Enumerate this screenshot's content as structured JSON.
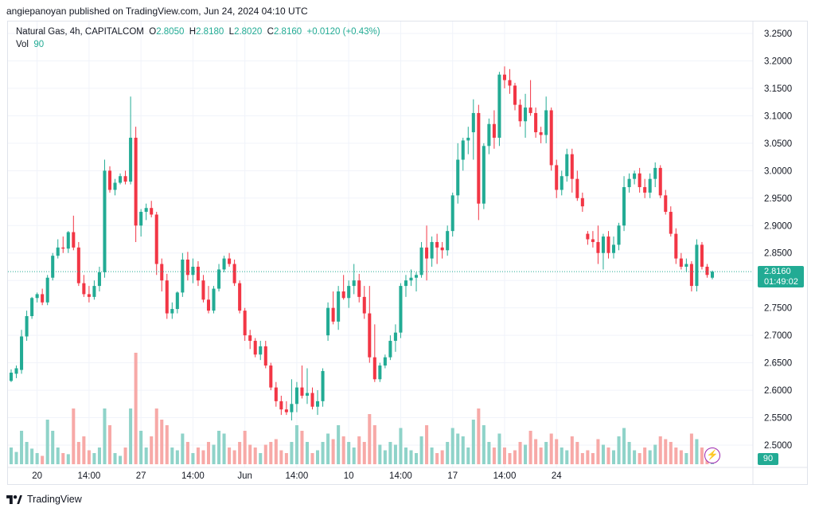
{
  "caption": "angiepanoyan published on TradingView.com, Jun 24, 2024 04:10 UTC",
  "legend": {
    "symbol": "Natural Gas, 4h, CAPITALCOM",
    "o_label": "O",
    "o_value": "2.8050",
    "h_label": "H",
    "h_value": "2.8180",
    "l_label": "L",
    "l_value": "2.8020",
    "c_label": "C",
    "c_value": "2.8160",
    "change": "+0.0120 (+0.43%)",
    "vol_label": "Vol",
    "vol_value": "90"
  },
  "price_tag": {
    "price": "2.8160",
    "countdown": "01:49:02"
  },
  "vol_tag": "90",
  "footer": {
    "brand": "TradingView"
  },
  "colors": {
    "up": "#22ab94",
    "down": "#f23645",
    "vol_up": "#8fd3c9",
    "vol_down": "#f7a9a7"
  },
  "chart_data": {
    "type": "candlestick",
    "price_axis": [
      "3.2500",
      "3.2000",
      "3.1500",
      "3.1000",
      "3.0500",
      "3.0000",
      "2.9500",
      "2.9000",
      "2.8500",
      "2.8000",
      "2.7500",
      "2.7000",
      "2.6500",
      "2.6000",
      "2.5500",
      "2.5000"
    ],
    "x_axis": [
      {
        "label": "20",
        "index": 5
      },
      {
        "label": "14:00",
        "index": 15
      },
      {
        "label": "27",
        "index": 25
      },
      {
        "label": "14:00",
        "index": 35
      },
      {
        "label": "Jun",
        "index": 45
      },
      {
        "label": "14:00",
        "index": 55
      },
      {
        "label": "10",
        "index": 65
      },
      {
        "label": "14:00",
        "index": 75
      },
      {
        "label": "17",
        "index": 85
      },
      {
        "label": "14:00",
        "index": 95
      },
      {
        "label": "24",
        "index": 105
      }
    ],
    "last_price": 2.816,
    "candles": [
      {
        "o": 2.617,
        "h": 2.638,
        "l": 2.615,
        "c": 2.632,
        "v": 0.3
      },
      {
        "o": 2.63,
        "h": 2.645,
        "l": 2.622,
        "c": 2.64,
        "v": 0.22
      },
      {
        "o": 2.637,
        "h": 2.71,
        "l": 2.63,
        "c": 2.698,
        "v": 0.6
      },
      {
        "o": 2.698,
        "h": 2.745,
        "l": 2.69,
        "c": 2.735,
        "v": 0.4
      },
      {
        "o": 2.735,
        "h": 2.77,
        "l": 2.73,
        "c": 2.768,
        "v": 0.28
      },
      {
        "o": 2.768,
        "h": 2.778,
        "l": 2.76,
        "c": 2.775,
        "v": 0.2
      },
      {
        "o": 2.775,
        "h": 2.785,
        "l": 2.755,
        "c": 2.76,
        "v": 0.15
      },
      {
        "o": 2.76,
        "h": 2.81,
        "l": 2.755,
        "c": 2.805,
        "v": 0.8
      },
      {
        "o": 2.805,
        "h": 2.85,
        "l": 2.8,
        "c": 2.845,
        "v": 0.6
      },
      {
        "o": 2.845,
        "h": 2.875,
        "l": 2.84,
        "c": 2.86,
        "v": 0.3
      },
      {
        "o": 2.86,
        "h": 2.88,
        "l": 2.85,
        "c": 2.858,
        "v": 0.2
      },
      {
        "o": 2.858,
        "h": 2.89,
        "l": 2.85,
        "c": 2.888,
        "v": 0.18
      },
      {
        "o": 2.888,
        "h": 2.918,
        "l": 2.855,
        "c": 2.86,
        "v": 1.0
      },
      {
        "o": 2.86,
        "h": 2.87,
        "l": 2.79,
        "c": 2.795,
        "v": 0.4
      },
      {
        "o": 2.795,
        "h": 2.81,
        "l": 2.77,
        "c": 2.775,
        "v": 0.5
      },
      {
        "o": 2.775,
        "h": 2.79,
        "l": 2.76,
        "c": 2.77,
        "v": 0.25
      },
      {
        "o": 2.77,
        "h": 2.8,
        "l": 2.765,
        "c": 2.79,
        "v": 0.2
      },
      {
        "o": 2.79,
        "h": 2.825,
        "l": 2.78,
        "c": 2.815,
        "v": 0.3
      },
      {
        "o": 2.815,
        "h": 3.02,
        "l": 2.805,
        "c": 3.0,
        "v": 1.0
      },
      {
        "o": 3.0,
        "h": 3.008,
        "l": 2.96,
        "c": 2.965,
        "v": 0.7
      },
      {
        "o": 2.965,
        "h": 2.985,
        "l": 2.955,
        "c": 2.978,
        "v": 0.2
      },
      {
        "o": 2.978,
        "h": 2.995,
        "l": 2.975,
        "c": 2.99,
        "v": 0.15
      },
      {
        "o": 2.99,
        "h": 3.0,
        "l": 2.975,
        "c": 2.98,
        "v": 0.3
      },
      {
        "o": 2.98,
        "h": 3.135,
        "l": 2.975,
        "c": 3.06,
        "v": 1.0
      },
      {
        "o": 3.06,
        "h": 3.08,
        "l": 2.87,
        "c": 2.9,
        "v": 2.0
      },
      {
        "o": 2.9,
        "h": 2.93,
        "l": 2.88,
        "c": 2.925,
        "v": 0.6
      },
      {
        "o": 2.925,
        "h": 2.94,
        "l": 2.91,
        "c": 2.932,
        "v": 0.3
      },
      {
        "o": 2.932,
        "h": 2.945,
        "l": 2.915,
        "c": 2.92,
        "v": 0.5
      },
      {
        "o": 2.92,
        "h": 2.925,
        "l": 2.81,
        "c": 2.83,
        "v": 1.0
      },
      {
        "o": 2.83,
        "h": 2.84,
        "l": 2.78,
        "c": 2.8,
        "v": 0.8
      },
      {
        "o": 2.8,
        "h": 2.812,
        "l": 2.73,
        "c": 2.74,
        "v": 0.7
      },
      {
        "o": 2.74,
        "h": 2.76,
        "l": 2.73,
        "c": 2.748,
        "v": 0.3
      },
      {
        "o": 2.748,
        "h": 2.78,
        "l": 2.74,
        "c": 2.778,
        "v": 0.25
      },
      {
        "o": 2.778,
        "h": 2.85,
        "l": 2.77,
        "c": 2.838,
        "v": 0.55
      },
      {
        "o": 2.838,
        "h": 2.852,
        "l": 2.8,
        "c": 2.81,
        "v": 0.4
      },
      {
        "o": 2.81,
        "h": 2.84,
        "l": 2.795,
        "c": 2.825,
        "v": 0.2
      },
      {
        "o": 2.825,
        "h": 2.835,
        "l": 2.79,
        "c": 2.8,
        "v": 0.3
      },
      {
        "o": 2.8,
        "h": 2.81,
        "l": 2.76,
        "c": 2.765,
        "v": 0.25
      },
      {
        "o": 2.765,
        "h": 2.79,
        "l": 2.74,
        "c": 2.745,
        "v": 0.4
      },
      {
        "o": 2.745,
        "h": 2.79,
        "l": 2.74,
        "c": 2.785,
        "v": 0.35
      },
      {
        "o": 2.785,
        "h": 2.83,
        "l": 2.78,
        "c": 2.82,
        "v": 0.6
      },
      {
        "o": 2.82,
        "h": 2.845,
        "l": 2.815,
        "c": 2.84,
        "v": 0.55
      },
      {
        "o": 2.84,
        "h": 2.85,
        "l": 2.825,
        "c": 2.83,
        "v": 0.3
      },
      {
        "o": 2.83,
        "h": 2.838,
        "l": 2.79,
        "c": 2.795,
        "v": 0.25
      },
      {
        "o": 2.795,
        "h": 2.8,
        "l": 2.74,
        "c": 2.745,
        "v": 0.4
      },
      {
        "o": 2.745,
        "h": 2.75,
        "l": 2.69,
        "c": 2.7,
        "v": 0.6
      },
      {
        "o": 2.7,
        "h": 2.71,
        "l": 2.675,
        "c": 2.69,
        "v": 0.35
      },
      {
        "o": 2.69,
        "h": 2.695,
        "l": 2.66,
        "c": 2.665,
        "v": 0.3
      },
      {
        "o": 2.665,
        "h": 2.69,
        "l": 2.655,
        "c": 2.68,
        "v": 0.2
      },
      {
        "o": 2.68,
        "h": 2.69,
        "l": 2.64,
        "c": 2.645,
        "v": 0.35
      },
      {
        "o": 2.645,
        "h": 2.65,
        "l": 2.6,
        "c": 2.605,
        "v": 0.4
      },
      {
        "o": 2.605,
        "h": 2.615,
        "l": 2.57,
        "c": 2.58,
        "v": 0.45
      },
      {
        "o": 2.58,
        "h": 2.59,
        "l": 2.555,
        "c": 2.565,
        "v": 0.25
      },
      {
        "o": 2.565,
        "h": 2.58,
        "l": 2.555,
        "c": 2.56,
        "v": 0.2
      },
      {
        "o": 2.56,
        "h": 2.62,
        "l": 2.545,
        "c": 2.575,
        "v": 0.4
      },
      {
        "o": 2.575,
        "h": 2.615,
        "l": 2.56,
        "c": 2.605,
        "v": 0.7
      },
      {
        "o": 2.605,
        "h": 2.645,
        "l": 2.585,
        "c": 2.59,
        "v": 0.6
      },
      {
        "o": 2.59,
        "h": 2.64,
        "l": 2.575,
        "c": 2.595,
        "v": 0.4
      },
      {
        "o": 2.595,
        "h": 2.605,
        "l": 2.565,
        "c": 2.57,
        "v": 0.2
      },
      {
        "o": 2.57,
        "h": 2.6,
        "l": 2.555,
        "c": 2.58,
        "v": 0.25
      },
      {
        "o": 2.58,
        "h": 2.64,
        "l": 2.57,
        "c": 2.635,
        "v": 0.4
      },
      {
        "o": 2.7,
        "h": 2.76,
        "l": 2.69,
        "c": 2.75,
        "v": 0.55
      },
      {
        "o": 2.75,
        "h": 2.78,
        "l": 2.72,
        "c": 2.725,
        "v": 0.45
      },
      {
        "o": 2.725,
        "h": 2.79,
        "l": 2.71,
        "c": 2.78,
        "v": 0.7
      },
      {
        "o": 2.78,
        "h": 2.81,
        "l": 2.765,
        "c": 2.768,
        "v": 0.5
      },
      {
        "o": 2.768,
        "h": 2.8,
        "l": 2.75,
        "c": 2.79,
        "v": 0.4
      },
      {
        "o": 2.79,
        "h": 2.83,
        "l": 2.775,
        "c": 2.8,
        "v": 0.3
      },
      {
        "o": 2.8,
        "h": 2.812,
        "l": 2.76,
        "c": 2.77,
        "v": 0.5
      },
      {
        "o": 2.77,
        "h": 2.79,
        "l": 2.73,
        "c": 2.74,
        "v": 0.4
      },
      {
        "o": 2.74,
        "h": 2.79,
        "l": 2.65,
        "c": 2.66,
        "v": 0.9
      },
      {
        "o": 2.66,
        "h": 2.72,
        "l": 2.615,
        "c": 2.62,
        "v": 0.7
      },
      {
        "o": 2.62,
        "h": 2.65,
        "l": 2.615,
        "c": 2.645,
        "v": 0.35
      },
      {
        "o": 2.645,
        "h": 2.665,
        "l": 2.64,
        "c": 2.66,
        "v": 0.25
      },
      {
        "o": 2.66,
        "h": 2.7,
        "l": 2.655,
        "c": 2.69,
        "v": 0.4
      },
      {
        "o": 2.69,
        "h": 2.72,
        "l": 2.67,
        "c": 2.705,
        "v": 0.35
      },
      {
        "o": 2.705,
        "h": 2.795,
        "l": 2.695,
        "c": 2.79,
        "v": 0.65
      },
      {
        "o": 2.79,
        "h": 2.81,
        "l": 2.77,
        "c": 2.8,
        "v": 0.3
      },
      {
        "o": 2.8,
        "h": 2.82,
        "l": 2.79,
        "c": 2.805,
        "v": 0.25
      },
      {
        "o": 2.805,
        "h": 2.815,
        "l": 2.78,
        "c": 2.81,
        "v": 0.2
      },
      {
        "o": 2.81,
        "h": 2.87,
        "l": 2.805,
        "c": 2.86,
        "v": 0.5
      },
      {
        "o": 2.86,
        "h": 2.9,
        "l": 2.8,
        "c": 2.84,
        "v": 0.7
      },
      {
        "o": 2.84,
        "h": 2.88,
        "l": 2.825,
        "c": 2.87,
        "v": 0.3
      },
      {
        "o": 2.87,
        "h": 2.885,
        "l": 2.83,
        "c": 2.86,
        "v": 0.2
      },
      {
        "o": 2.86,
        "h": 2.87,
        "l": 2.84,
        "c": 2.855,
        "v": 0.25
      },
      {
        "o": 2.855,
        "h": 2.9,
        "l": 2.845,
        "c": 2.89,
        "v": 0.4
      },
      {
        "o": 2.89,
        "h": 2.96,
        "l": 2.88,
        "c": 2.955,
        "v": 0.65
      },
      {
        "o": 2.955,
        "h": 3.05,
        "l": 2.94,
        "c": 3.02,
        "v": 0.55
      },
      {
        "o": 3.02,
        "h": 3.06,
        "l": 3.0,
        "c": 3.055,
        "v": 0.5
      },
      {
        "o": 3.055,
        "h": 3.08,
        "l": 3.03,
        "c": 3.06,
        "v": 0.3
      },
      {
        "o": 3.07,
        "h": 3.13,
        "l": 3.02,
        "c": 3.105,
        "v": 0.8
      },
      {
        "o": 3.105,
        "h": 3.12,
        "l": 2.91,
        "c": 2.94,
        "v": 1.0
      },
      {
        "o": 2.94,
        "h": 3.05,
        "l": 2.93,
        "c": 3.045,
        "v": 0.7
      },
      {
        "o": 3.045,
        "h": 3.095,
        "l": 3.03,
        "c": 3.085,
        "v": 0.4
      },
      {
        "o": 3.085,
        "h": 3.11,
        "l": 3.04,
        "c": 3.06,
        "v": 0.3
      },
      {
        "o": 3.06,
        "h": 3.18,
        "l": 3.045,
        "c": 3.175,
        "v": 0.55
      },
      {
        "o": 3.175,
        "h": 3.19,
        "l": 3.15,
        "c": 3.165,
        "v": 0.3
      },
      {
        "o": 3.165,
        "h": 3.185,
        "l": 3.14,
        "c": 3.155,
        "v": 0.2
      },
      {
        "o": 3.155,
        "h": 3.16,
        "l": 3.11,
        "c": 3.12,
        "v": 0.25
      },
      {
        "o": 3.12,
        "h": 3.13,
        "l": 3.08,
        "c": 3.09,
        "v": 0.4
      },
      {
        "o": 3.09,
        "h": 3.14,
        "l": 3.06,
        "c": 3.115,
        "v": 0.35
      },
      {
        "o": 3.115,
        "h": 3.165,
        "l": 3.1,
        "c": 3.105,
        "v": 0.6
      },
      {
        "o": 3.105,
        "h": 3.115,
        "l": 3.06,
        "c": 3.07,
        "v": 0.45
      },
      {
        "o": 3.07,
        "h": 3.08,
        "l": 3.05,
        "c": 3.065,
        "v": 0.3
      },
      {
        "o": 3.065,
        "h": 3.135,
        "l": 3.05,
        "c": 3.11,
        "v": 0.4
      },
      {
        "o": 3.11,
        "h": 3.115,
        "l": 3.0,
        "c": 3.01,
        "v": 0.55
      },
      {
        "o": 3.01,
        "h": 3.02,
        "l": 2.95,
        "c": 2.965,
        "v": 0.45
      },
      {
        "o": 2.965,
        "h": 3.0,
        "l": 2.955,
        "c": 2.99,
        "v": 0.3
      },
      {
        "o": 2.99,
        "h": 3.04,
        "l": 2.98,
        "c": 3.03,
        "v": 0.25
      },
      {
        "o": 3.03,
        "h": 3.04,
        "l": 2.96,
        "c": 2.985,
        "v": 0.5
      },
      {
        "o": 2.985,
        "h": 3.0,
        "l": 2.945,
        "c": 2.95,
        "v": 0.4
      },
      {
        "o": 2.95,
        "h": 2.96,
        "l": 2.925,
        "c": 2.935,
        "v": 0.2
      },
      {
        "o": 2.885,
        "h": 2.89,
        "l": 2.865,
        "c": 2.875,
        "v": 0.25
      },
      {
        "o": 2.875,
        "h": 2.89,
        "l": 2.86,
        "c": 2.87,
        "v": 0.2
      },
      {
        "o": 2.87,
        "h": 2.9,
        "l": 2.83,
        "c": 2.85,
        "v": 0.45
      },
      {
        "o": 2.85,
        "h": 2.885,
        "l": 2.82,
        "c": 2.88,
        "v": 0.35
      },
      {
        "o": 2.88,
        "h": 2.89,
        "l": 2.84,
        "c": 2.85,
        "v": 0.3
      },
      {
        "o": 2.85,
        "h": 2.88,
        "l": 2.84,
        "c": 2.865,
        "v": 0.25
      },
      {
        "o": 2.865,
        "h": 2.905,
        "l": 2.855,
        "c": 2.9,
        "v": 0.5
      },
      {
        "o": 2.9,
        "h": 2.99,
        "l": 2.89,
        "c": 2.97,
        "v": 0.65
      },
      {
        "o": 2.97,
        "h": 2.995,
        "l": 2.96,
        "c": 2.985,
        "v": 0.4
      },
      {
        "o": 2.985,
        "h": 3.0,
        "l": 2.975,
        "c": 2.995,
        "v": 0.25
      },
      {
        "o": 2.995,
        "h": 3.005,
        "l": 2.96,
        "c": 2.97,
        "v": 0.2
      },
      {
        "o": 2.97,
        "h": 2.985,
        "l": 2.95,
        "c": 2.96,
        "v": 0.3
      },
      {
        "o": 2.96,
        "h": 2.995,
        "l": 2.95,
        "c": 2.985,
        "v": 0.25
      },
      {
        "o": 2.985,
        "h": 3.015,
        "l": 2.97,
        "c": 3.005,
        "v": 0.35
      },
      {
        "o": 3.005,
        "h": 3.01,
        "l": 2.95,
        "c": 2.955,
        "v": 0.5
      },
      {
        "o": 2.955,
        "h": 2.965,
        "l": 2.92,
        "c": 2.925,
        "v": 0.45
      },
      {
        "o": 2.925,
        "h": 2.935,
        "l": 2.88,
        "c": 2.885,
        "v": 0.4
      },
      {
        "o": 2.885,
        "h": 2.895,
        "l": 2.83,
        "c": 2.84,
        "v": 0.3
      },
      {
        "o": 2.84,
        "h": 2.85,
        "l": 2.82,
        "c": 2.825,
        "v": 0.25
      },
      {
        "o": 2.825,
        "h": 2.84,
        "l": 2.815,
        "c": 2.83,
        "v": 0.2
      },
      {
        "o": 2.83,
        "h": 2.835,
        "l": 2.78,
        "c": 2.79,
        "v": 0.55
      },
      {
        "o": 2.79,
        "h": 2.875,
        "l": 2.78,
        "c": 2.865,
        "v": 0.45
      },
      {
        "o": 2.865,
        "h": 2.87,
        "l": 2.82,
        "c": 2.825,
        "v": 0.3
      },
      {
        "o": 2.825,
        "h": 2.83,
        "l": 2.805,
        "c": 2.81,
        "v": 0.2
      },
      {
        "o": 2.805,
        "h": 2.818,
        "l": 2.802,
        "c": 2.816,
        "v": 0.15
      }
    ]
  }
}
